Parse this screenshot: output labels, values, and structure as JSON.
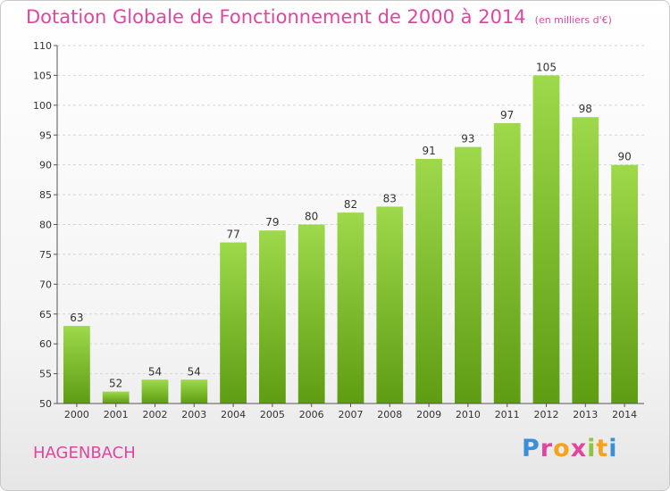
{
  "title": "Dotation Globale de Fonctionnement de 2000 à 2014",
  "unit_note": "(en milliers d'€)",
  "commune": "HAGENBACH",
  "logo": {
    "text": "Proxiti",
    "letter_colors": [
      "#3a8fd8",
      "#e0469e",
      "#f7a21b",
      "#e0469e",
      "#8cc63f",
      "#f7a21b",
      "#3a8fd8"
    ]
  },
  "colors": {
    "bar_light": "#9dd94a",
    "bar_dark": "#5e9c12",
    "title": "#e0469e",
    "grid": "#d6d6d6",
    "axis": "#555555"
  },
  "chart_data": {
    "type": "bar",
    "categories": [
      "2000",
      "2001",
      "2002",
      "2003",
      "2004",
      "2005",
      "2006",
      "2007",
      "2008",
      "2009",
      "2010",
      "2011",
      "2012",
      "2013",
      "2014"
    ],
    "values": [
      63,
      52,
      54,
      54,
      77,
      79,
      80,
      82,
      83,
      91,
      93,
      97,
      105,
      98,
      90
    ],
    "title": "Dotation Globale de Fonctionnement de 2000 à 2014",
    "xlabel": "",
    "ylabel": "",
    "ylim": [
      50,
      110
    ],
    "yticks": [
      50,
      55,
      60,
      65,
      70,
      75,
      80,
      85,
      90,
      95,
      100,
      105,
      110
    ],
    "grid": true,
    "data_labels": true
  }
}
